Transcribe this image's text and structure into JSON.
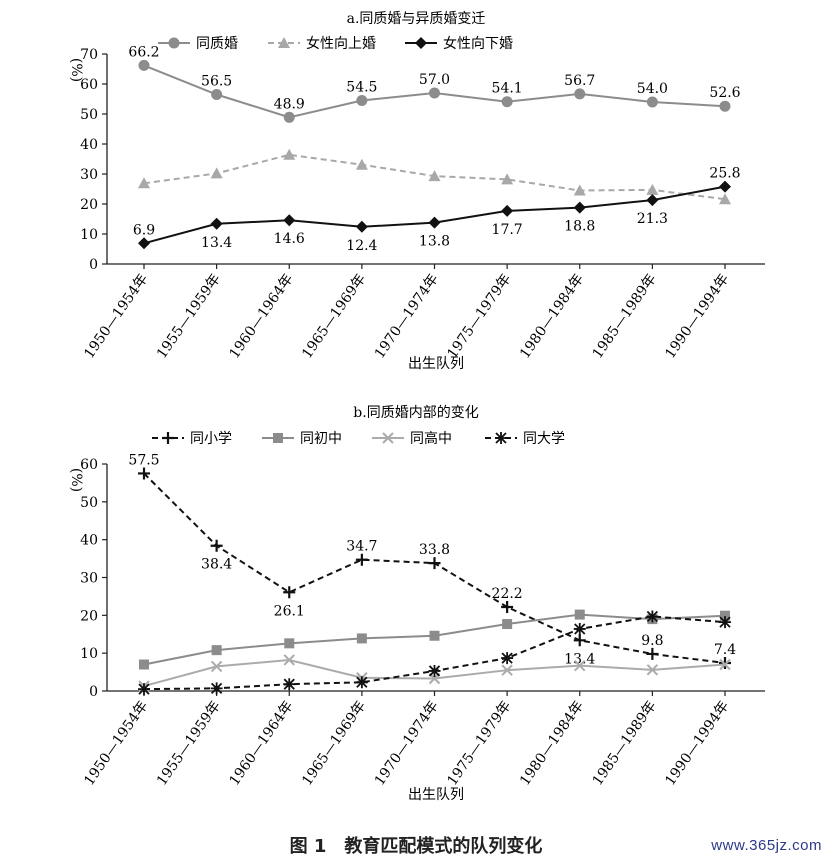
{
  "caption": "图 1　教育匹配模式的队列变化",
  "watermark": "www.365jz.com",
  "chart_data": [
    {
      "type": "line",
      "title": "a.同质婚与异质婚变迁",
      "xlabel": "出生队列",
      "ylabel": "(%)",
      "ylim": [
        0,
        70
      ],
      "yticks": [
        0,
        10,
        20,
        30,
        40,
        50,
        60,
        70
      ],
      "grid": false,
      "legend_position": "top",
      "categories": [
        "1950—1954年",
        "1955—1959年",
        "1960—1964年",
        "1965—1969年",
        "1970—1974年",
        "1975—1979年",
        "1980—1984年",
        "1985—1989年",
        "1990—1994年"
      ],
      "series": [
        {
          "name": "同质婚",
          "marker": "circle",
          "line": "solid",
          "color": "#8c8c8c",
          "show_labels": true,
          "label_pos": "above",
          "values": [
            66.2,
            56.5,
            48.9,
            54.5,
            57.0,
            54.1,
            56.7,
            54.0,
            52.6
          ],
          "labels": [
            "66.2",
            "56.5",
            "48.9",
            "54.5",
            "57.0",
            "54.1",
            "56.7",
            "54.0",
            "52.6"
          ]
        },
        {
          "name": "女性向上婚",
          "marker": "triangle",
          "line": "dashed",
          "color": "#a8a8a8",
          "show_labels": false,
          "values": [
            26.9,
            30.2,
            36.4,
            33.1,
            29.3,
            28.2,
            24.5,
            24.7,
            21.6
          ]
        },
        {
          "name": "女性向下婚",
          "marker": "diamond",
          "line": "solid",
          "color": "#111111",
          "show_labels": true,
          "values": [
            6.9,
            13.4,
            14.6,
            12.4,
            13.8,
            17.7,
            18.8,
            21.3,
            25.8
          ],
          "labels": [
            "6.9",
            "13.4",
            "14.6",
            "12.4",
            "13.8",
            "17.7",
            "18.8",
            "21.3",
            "25.8"
          ],
          "label_pos": [
            "above",
            "below",
            "below",
            "below",
            "below",
            "below",
            "below",
            "below",
            "above"
          ]
        }
      ]
    },
    {
      "type": "line",
      "title": "b.同质婚内部的变化",
      "xlabel": "出生队列",
      "ylabel": "(%)",
      "ylim": [
        0,
        60
      ],
      "yticks": [
        0,
        10,
        20,
        30,
        40,
        50,
        60
      ],
      "grid": false,
      "legend_position": "top",
      "categories": [
        "1950—1954年",
        "1955—1959年",
        "1960—1964年",
        "1965—1969年",
        "1970—1974年",
        "1975—1979年",
        "1980—1984年",
        "1985—1989年",
        "1990—1994年"
      ],
      "series": [
        {
          "name": "同小学",
          "marker": "plus",
          "line": "dashed",
          "color": "#111111",
          "show_labels": true,
          "values": [
            57.5,
            38.4,
            26.1,
            34.7,
            33.8,
            22.2,
            13.4,
            9.8,
            7.4
          ],
          "labels": [
            "57.5",
            "38.4",
            "26.1",
            "34.7",
            "33.8",
            "22.2",
            "13.4",
            "9.8",
            "7.4"
          ],
          "label_pos": [
            "above",
            "below",
            "below",
            "above",
            "above",
            "above",
            "below",
            "above",
            "above"
          ]
        },
        {
          "name": "同初中",
          "marker": "square",
          "line": "solid",
          "color": "#8c8c8c",
          "show_labels": false,
          "values": [
            7.0,
            10.8,
            12.6,
            13.9,
            14.6,
            17.7,
            20.2,
            19.0,
            19.9
          ]
        },
        {
          "name": "同高中",
          "marker": "x",
          "line": "solid",
          "color": "#ababab",
          "show_labels": false,
          "values": [
            1.3,
            6.5,
            8.2,
            3.5,
            3.3,
            5.5,
            6.7,
            5.6,
            7.0
          ]
        },
        {
          "name": "同大学",
          "marker": "asterisk",
          "line": "dashed",
          "color": "#111111",
          "show_labels": false,
          "values": [
            0.5,
            0.7,
            1.8,
            2.3,
            5.3,
            8.7,
            16.4,
            19.7,
            18.2
          ]
        }
      ]
    }
  ]
}
